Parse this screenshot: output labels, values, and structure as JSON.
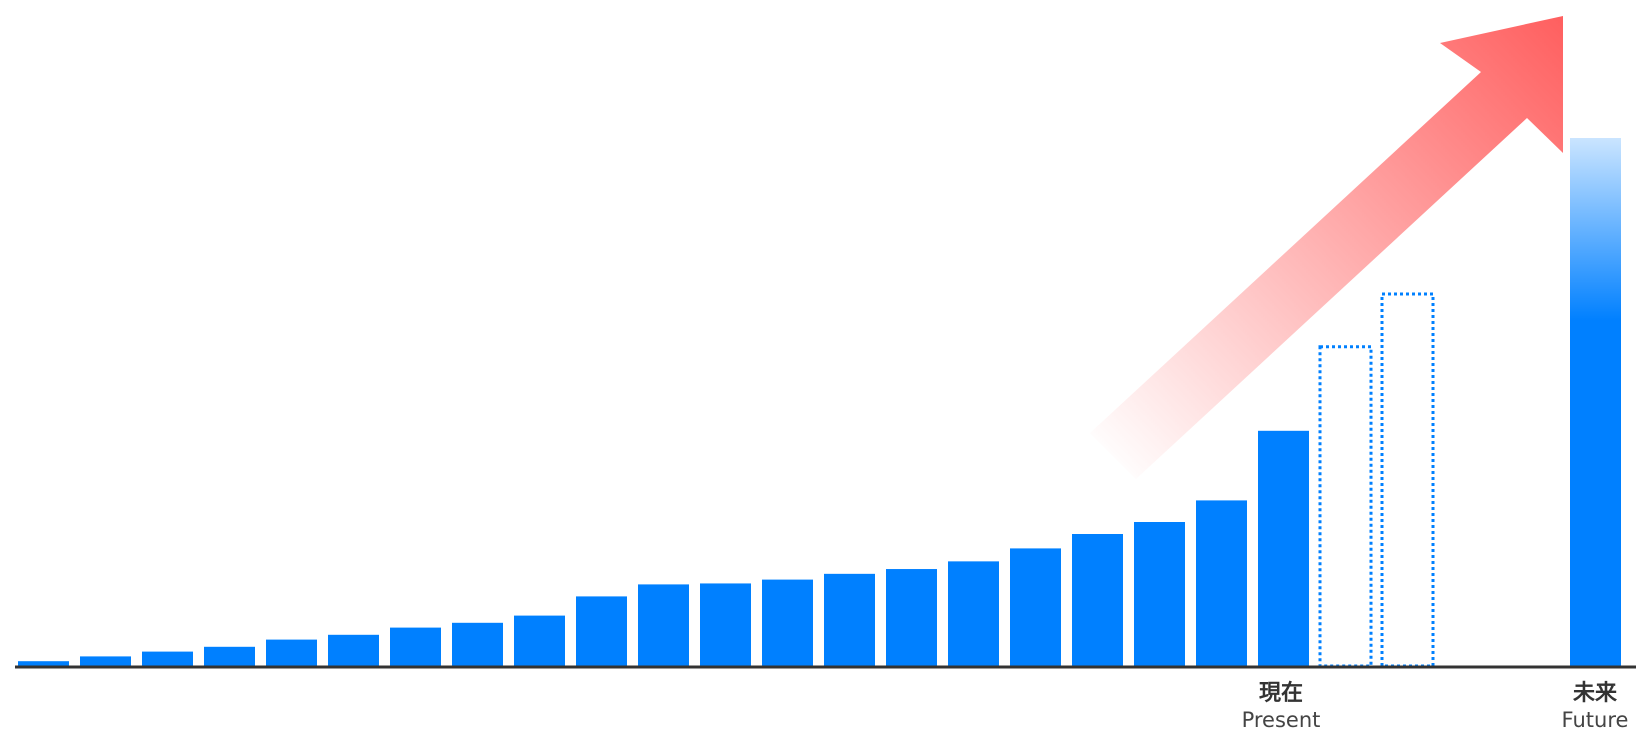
{
  "chart_data": {
    "type": "bar",
    "title": "",
    "xlabel": "",
    "ylabel": "",
    "grid": false,
    "values": [
      1,
      2,
      3,
      4,
      5.5,
      6.5,
      8,
      9,
      10.5,
      14.5,
      17,
      17.2,
      18,
      19.2,
      20.2,
      21.8,
      24.5,
      27.5,
      30,
      34.5,
      49
    ],
    "projected_values": [
      66.5,
      77.5
    ],
    "future_value": 110,
    "ylim": [
      0,
      120
    ],
    "markers": {
      "present": {
        "label_jp": "現在",
        "label_en": "Present"
      },
      "future": {
        "label_jp": "未来",
        "label_en": "Future"
      }
    },
    "colors": {
      "bar": "#0080ff",
      "arrow": "#ff6060",
      "axis": "#333333"
    },
    "trend_arrow": true
  }
}
